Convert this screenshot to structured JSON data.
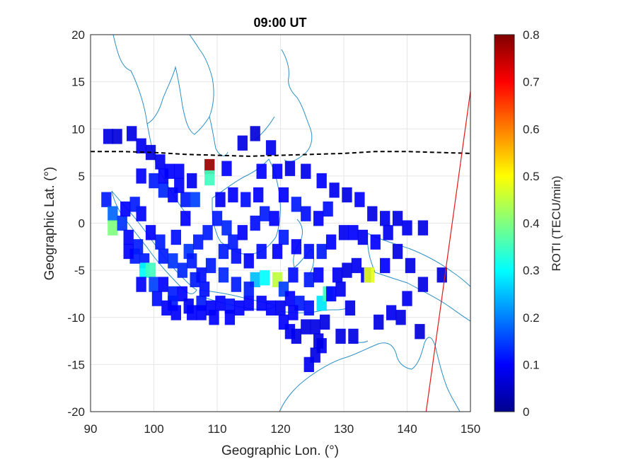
{
  "chart_data": {
    "type": "heatmap",
    "title": "09:00 UT",
    "xlabel": "Geographic Lon. (°)",
    "ylabel": "Geographic Lat. (°)",
    "xlim": [
      90,
      150
    ],
    "ylim": [
      -20,
      20
    ],
    "xticks": [
      "90",
      "100",
      "110",
      "120",
      "130",
      "140",
      "150"
    ],
    "yticks": [
      "20",
      "15",
      "10",
      "5",
      "0",
      "-5",
      "-10",
      "-15",
      "-20"
    ],
    "grid": true,
    "colorbar": {
      "label": "ROTI (TECU/min)",
      "range": [
        0,
        0.8
      ],
      "ticks": [
        "0",
        "0.1",
        "0.2",
        "0.3",
        "0.4",
        "0.5",
        "0.6",
        "0.7",
        "0.8"
      ],
      "colormap": "jet"
    },
    "magnetic_equator": [
      [
        90,
        7.6
      ],
      [
        95,
        7.6
      ],
      [
        100,
        7.5
      ],
      [
        105,
        7.3
      ],
      [
        110,
        7.2
      ],
      [
        115,
        7.1
      ],
      [
        120,
        7.2
      ],
      [
        125,
        7.3
      ],
      [
        130,
        7.4
      ],
      [
        135,
        7.6
      ],
      [
        140,
        7.6
      ],
      [
        145,
        7.5
      ],
      [
        150,
        7.4
      ]
    ],
    "reference_line": [
      [
        143.0,
        -20
      ],
      [
        150,
        14
      ]
    ],
    "roti_cells": [
      [
        92.8,
        9.2,
        0.08
      ],
      [
        94.2,
        9.2,
        0.07
      ],
      [
        96.5,
        9.5,
        0.08
      ],
      [
        98.0,
        8.2,
        0.09
      ],
      [
        99.5,
        7.5,
        0.08
      ],
      [
        101.0,
        6.5,
        0.09
      ],
      [
        102.5,
        5.5,
        0.1
      ],
      [
        104.0,
        5.5,
        0.1
      ],
      [
        100.0,
        4.5,
        0.12
      ],
      [
        101.5,
        3.5,
        0.13
      ],
      [
        103.0,
        3.0,
        0.1
      ],
      [
        105.0,
        2.5,
        0.12
      ],
      [
        106.5,
        2.5,
        0.15
      ],
      [
        108.8,
        6.0,
        0.78
      ],
      [
        108.8,
        4.8,
        0.35
      ],
      [
        111.5,
        5.8,
        0.1
      ],
      [
        114.0,
        8.5,
        0.08
      ],
      [
        116.0,
        9.5,
        0.07
      ],
      [
        118.5,
        8.0,
        0.09
      ],
      [
        117.0,
        5.5,
        0.1
      ],
      [
        119.5,
        5.5,
        0.1
      ],
      [
        121.5,
        5.8,
        0.08
      ],
      [
        124.0,
        5.5,
        0.09
      ],
      [
        126.5,
        4.5,
        0.1
      ],
      [
        128.5,
        3.5,
        0.09
      ],
      [
        130.5,
        3.0,
        0.08
      ],
      [
        132.5,
        2.5,
        0.1
      ],
      [
        134.5,
        1.0,
        0.08
      ],
      [
        136.5,
        0.5,
        0.09
      ],
      [
        138.5,
        0.5,
        0.08
      ],
      [
        140.0,
        -0.5,
        0.09
      ],
      [
        142.5,
        -0.5,
        0.08
      ],
      [
        92.5,
        2.5,
        0.12
      ],
      [
        93.5,
        1.0,
        0.18
      ],
      [
        93.5,
        -0.5,
        0.4
      ],
      [
        95.0,
        0.0,
        0.14
      ],
      [
        96.0,
        -1.5,
        0.1
      ],
      [
        97.5,
        -2.5,
        0.12
      ],
      [
        98.5,
        -4.0,
        0.12
      ],
      [
        98.5,
        -5.0,
        0.3
      ],
      [
        99.5,
        -5.0,
        0.35
      ],
      [
        100.0,
        -6.5,
        0.15
      ],
      [
        101.5,
        -6.5,
        0.1
      ],
      [
        103.0,
        -7.5,
        0.12
      ],
      [
        104.5,
        -7.5,
        0.1
      ],
      [
        103.0,
        -8.5,
        0.12
      ],
      [
        103.5,
        -9.5,
        0.1
      ],
      [
        105.5,
        -8.8,
        0.09
      ],
      [
        106.0,
        -9.5,
        0.1
      ],
      [
        107.5,
        -8.5,
        0.12
      ],
      [
        109.0,
        -9.0,
        0.1
      ],
      [
        110.5,
        -8.5,
        0.1
      ],
      [
        112.0,
        -8.8,
        0.11
      ],
      [
        113.5,
        -9.0,
        0.1
      ],
      [
        115.0,
        -8.5,
        0.1
      ],
      [
        116.0,
        -6.0,
        0.25
      ],
      [
        117.5,
        -5.8,
        0.3
      ],
      [
        119.5,
        -6.0,
        0.45
      ],
      [
        120.5,
        -7.0,
        0.15
      ],
      [
        121.5,
        -8.0,
        0.1
      ],
      [
        123.0,
        -8.5,
        0.12
      ],
      [
        124.5,
        -9.0,
        0.11
      ],
      [
        126.5,
        -8.5,
        0.28
      ],
      [
        127.5,
        -7.5,
        0.35
      ],
      [
        129.0,
        -5.5,
        0.09
      ],
      [
        130.5,
        -5.0,
        0.08
      ],
      [
        132.0,
        -4.5,
        0.09
      ],
      [
        133.5,
        -5.5,
        0.1
      ],
      [
        134.0,
        -5.5,
        0.48
      ],
      [
        136.5,
        -4.5,
        0.1
      ],
      [
        138.5,
        -3.0,
        0.08
      ],
      [
        140.5,
        -4.5,
        0.08
      ],
      [
        140.0,
        -8.0,
        0.09
      ],
      [
        142.5,
        -6.5,
        0.08
      ],
      [
        145.5,
        -5.5,
        0.07
      ],
      [
        105.5,
        -3.0,
        0.14
      ],
      [
        107.0,
        -2.0,
        0.12
      ],
      [
        108.5,
        -1.0,
        0.12
      ],
      [
        110.0,
        0.5,
        0.12
      ],
      [
        111.5,
        -0.5,
        0.13
      ],
      [
        112.5,
        -2.0,
        0.12
      ],
      [
        114.0,
        -1.0,
        0.1
      ],
      [
        116.0,
        0.0,
        0.11
      ],
      [
        117.5,
        1.0,
        0.12
      ],
      [
        119.0,
        0.5,
        0.1
      ],
      [
        120.5,
        -1.5,
        0.12
      ],
      [
        122.5,
        -2.5,
        0.1
      ],
      [
        124.5,
        -3.0,
        0.11
      ],
      [
        126.5,
        -3.0,
        0.12
      ],
      [
        128.0,
        -2.0,
        0.1
      ],
      [
        130.0,
        -1.0,
        0.09
      ],
      [
        131.5,
        -1.0,
        0.1
      ],
      [
        133.0,
        -1.5,
        0.09
      ],
      [
        135.0,
        -2.0,
        0.1
      ],
      [
        137.0,
        -1.0,
        0.09
      ],
      [
        105.0,
        0.5,
        0.1
      ],
      [
        103.5,
        -1.5,
        0.11
      ],
      [
        101.0,
        -2.0,
        0.12
      ],
      [
        99.5,
        -1.0,
        0.1
      ],
      [
        98.0,
        1.0,
        0.1
      ],
      [
        97.0,
        2.0,
        0.12
      ],
      [
        110.5,
        2.5,
        0.09
      ],
      [
        112.5,
        3.0,
        0.1
      ],
      [
        114.5,
        2.5,
        0.11
      ],
      [
        116.5,
        3.0,
        0.1
      ],
      [
        120.5,
        3.0,
        0.1
      ],
      [
        122.5,
        2.0,
        0.12
      ],
      [
        124.0,
        1.0,
        0.11
      ],
      [
        126.0,
        0.5,
        0.1
      ],
      [
        127.5,
        1.5,
        0.11
      ],
      [
        109.0,
        -4.5,
        0.12
      ],
      [
        111.0,
        -5.5,
        0.13
      ],
      [
        113.0,
        -6.5,
        0.12
      ],
      [
        115.0,
        -7.0,
        0.12
      ],
      [
        122.0,
        -5.5,
        0.11
      ],
      [
        124.5,
        -6.0,
        0.12
      ],
      [
        126.0,
        -5.5,
        0.1
      ],
      [
        128.0,
        -7.5,
        0.1
      ],
      [
        108.0,
        -7.0,
        0.11
      ],
      [
        106.5,
        -6.0,
        0.12
      ],
      [
        104.5,
        -5.0,
        0.13
      ],
      [
        103.0,
        -4.0,
        0.14
      ],
      [
        101.5,
        -3.5,
        0.12
      ],
      [
        106.0,
        -4.0,
        0.12
      ],
      [
        107.5,
        -5.5,
        0.11
      ],
      [
        117.0,
        -8.5,
        0.1
      ],
      [
        118.5,
        -9.0,
        0.1
      ],
      [
        120.0,
        -9.0,
        0.09
      ],
      [
        122.0,
        -9.5,
        0.1
      ],
      [
        119.5,
        -3.0,
        0.1
      ],
      [
        117.0,
        -3.0,
        0.11
      ],
      [
        115.0,
        -4.0,
        0.1
      ],
      [
        113.0,
        -3.5,
        0.11
      ],
      [
        111.0,
        -3.0,
        0.12
      ],
      [
        129.5,
        -7.0,
        0.09
      ],
      [
        131.0,
        -9.0,
        0.08
      ],
      [
        135.5,
        -10.5,
        0.08
      ],
      [
        137.5,
        -9.5,
        0.09
      ],
      [
        139.0,
        -10.0,
        0.08
      ],
      [
        142.0,
        -11.5,
        0.07
      ],
      [
        127.0,
        -10.5,
        0.08
      ],
      [
        125.5,
        -11.0,
        0.08
      ],
      [
        124.0,
        -11.0,
        0.08
      ],
      [
        122.5,
        -12.0,
        0.08
      ],
      [
        126.5,
        -13.0,
        0.09
      ],
      [
        125.5,
        -14.0,
        0.08
      ],
      [
        124.5,
        -15.0,
        0.09
      ],
      [
        126.0,
        -12.5,
        0.08
      ],
      [
        129.5,
        -12.0,
        0.08
      ],
      [
        131.5,
        -12.0,
        0.08
      ],
      [
        121.5,
        -11.5,
        0.09
      ],
      [
        120.5,
        -10.5,
        0.1
      ],
      [
        112.0,
        -10.0,
        0.1
      ],
      [
        109.5,
        -10.0,
        0.1
      ],
      [
        107.5,
        -9.5,
        0.1
      ],
      [
        102.0,
        -9.0,
        0.1
      ],
      [
        100.5,
        -8.0,
        0.11
      ],
      [
        98.0,
        -6.5,
        0.1
      ],
      [
        97.0,
        -3.5,
        0.12
      ],
      [
        96.0,
        -3.0,
        0.1
      ],
      [
        95.5,
        1.5,
        0.1
      ],
      [
        98.0,
        5.0,
        0.1
      ],
      [
        101.5,
        5.0,
        0.1
      ],
      [
        104.0,
        4.0,
        0.1
      ],
      [
        106.0,
        4.5,
        0.09
      ]
    ]
  }
}
